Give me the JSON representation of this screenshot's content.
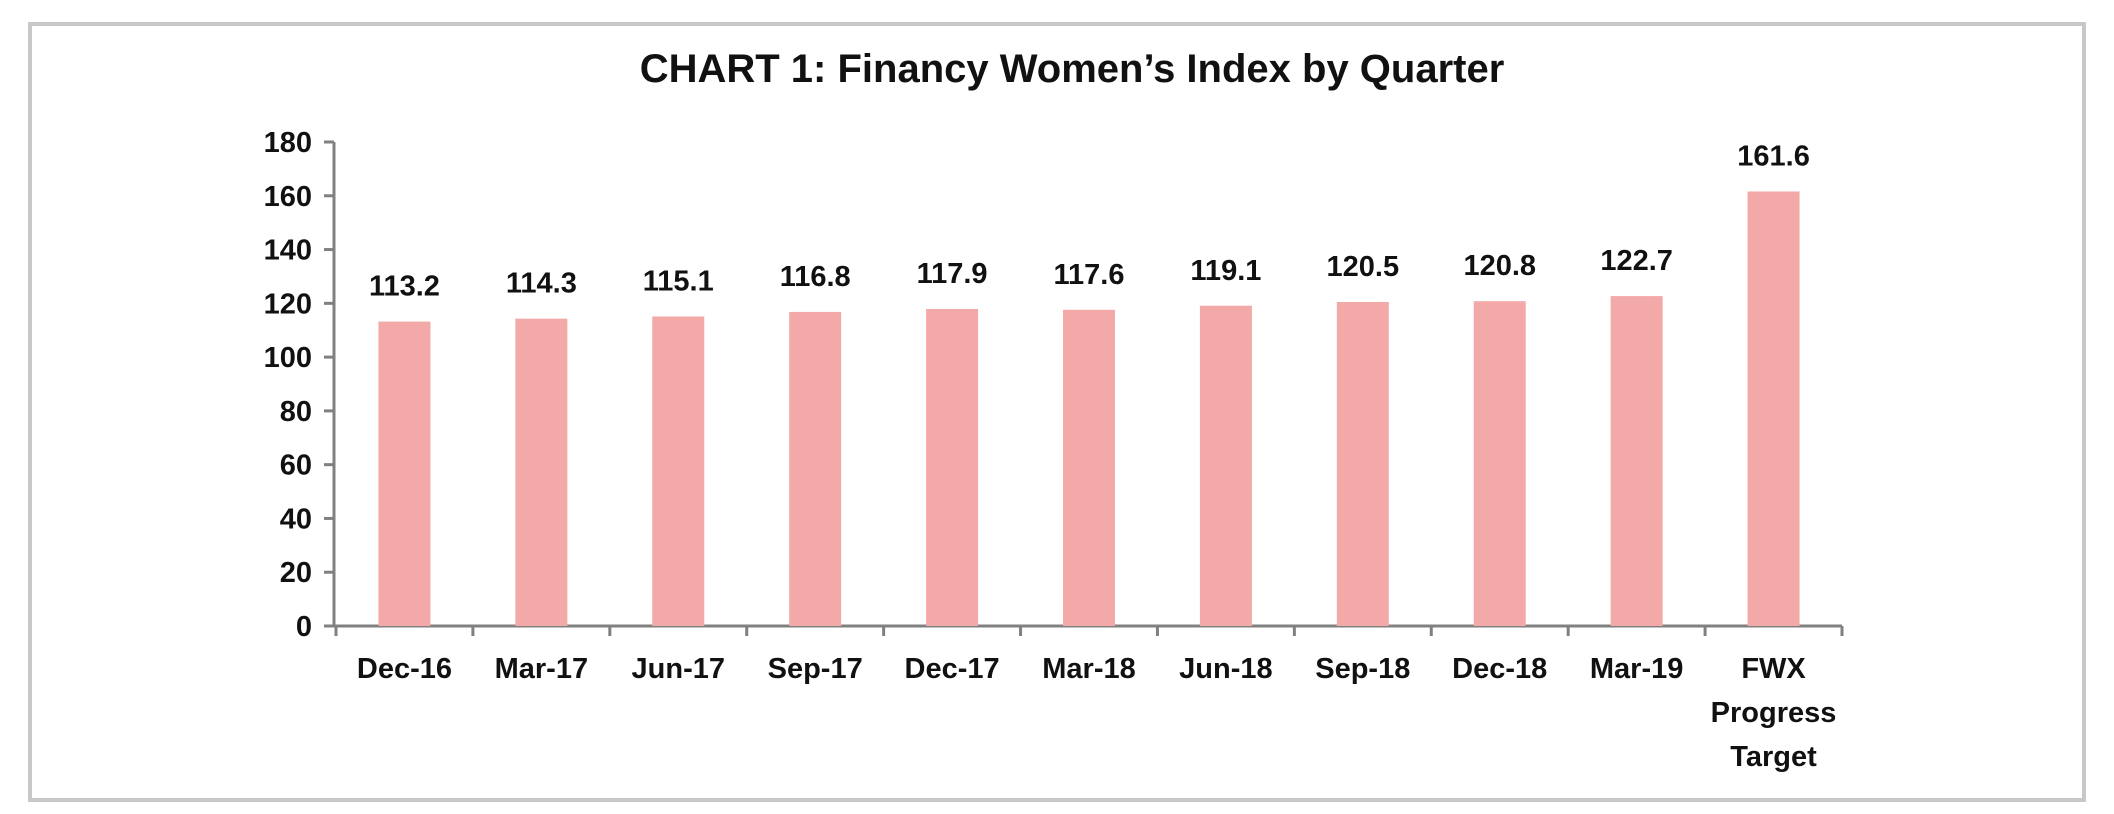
{
  "chart_data": {
    "type": "bar",
    "title": "CHART 1: Financy Women’s Index by Quarter",
    "xlabel": "",
    "ylabel": "",
    "categories": [
      "Dec-16",
      "Mar-17",
      "Jun-17",
      "Sep-17",
      "Dec-17",
      "Mar-18",
      "Jun-18",
      "Sep-18",
      "Dec-18",
      "Mar-19",
      "FWX Progress Target"
    ],
    "category_lines": [
      [
        "Dec-16"
      ],
      [
        "Mar-17"
      ],
      [
        "Jun-17"
      ],
      [
        "Sep-17"
      ],
      [
        "Dec-17"
      ],
      [
        "Mar-18"
      ],
      [
        "Jun-18"
      ],
      [
        "Sep-18"
      ],
      [
        "Dec-18"
      ],
      [
        "Mar-19"
      ],
      [
        "FWX",
        "Progress",
        "Target"
      ]
    ],
    "values": [
      113.2,
      114.3,
      115.1,
      116.8,
      117.9,
      117.6,
      119.1,
      120.5,
      120.8,
      122.7,
      161.6
    ],
    "value_labels": [
      "113.2",
      "114.3",
      "115.1",
      "116.8",
      "117.9",
      "117.6",
      "119.1",
      "120.5",
      "120.8",
      "122.7",
      "161.6"
    ],
    "ylim": [
      0,
      180
    ],
    "yticks": [
      0,
      20,
      40,
      60,
      80,
      100,
      120,
      140,
      160,
      180
    ],
    "bar_color": "#f4a9a9",
    "axis_color": "#808080",
    "grid": false,
    "legend": "none"
  }
}
